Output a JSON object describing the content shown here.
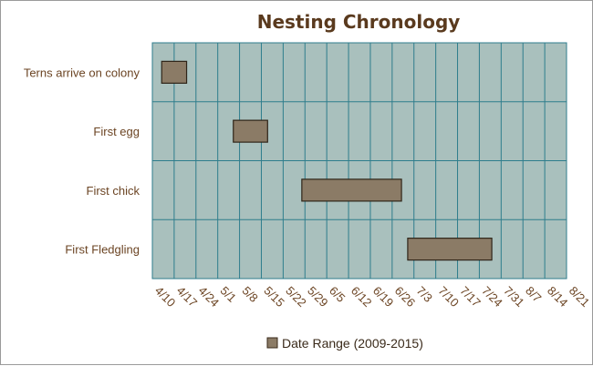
{
  "chart_data": {
    "type": "bar",
    "orientation": "horizontal-range",
    "title": "Nesting Chronology",
    "xlabel": "",
    "ylabel": "",
    "x_ticks": [
      "4/10",
      "4/17",
      "4/24",
      "5/1",
      "5/8",
      "5/15",
      "5/22",
      "5/29",
      "6/5",
      "6/12",
      "6/19",
      "6/26",
      "7/3",
      "7/10",
      "7/17",
      "7/24",
      "7/31",
      "8/7",
      "8/14",
      "8/21"
    ],
    "xlim": [
      "4/10",
      "8/21"
    ],
    "categories": [
      "Terns arrive on colony",
      "First egg",
      "First chick",
      "First Fledgling"
    ],
    "series": [
      {
        "name": "Date Range (2009-2015)",
        "color": "#8b7b66",
        "ranges": [
          {
            "start": "4/13",
            "end": "4/21"
          },
          {
            "start": "5/6",
            "end": "5/17"
          },
          {
            "start": "5/28",
            "end": "6/29"
          },
          {
            "start": "7/1",
            "end": "7/28"
          }
        ]
      }
    ],
    "grid": true,
    "legend_position": "bottom",
    "plot_background": "#a9c0bd",
    "grid_color": "#2e7d8c"
  }
}
